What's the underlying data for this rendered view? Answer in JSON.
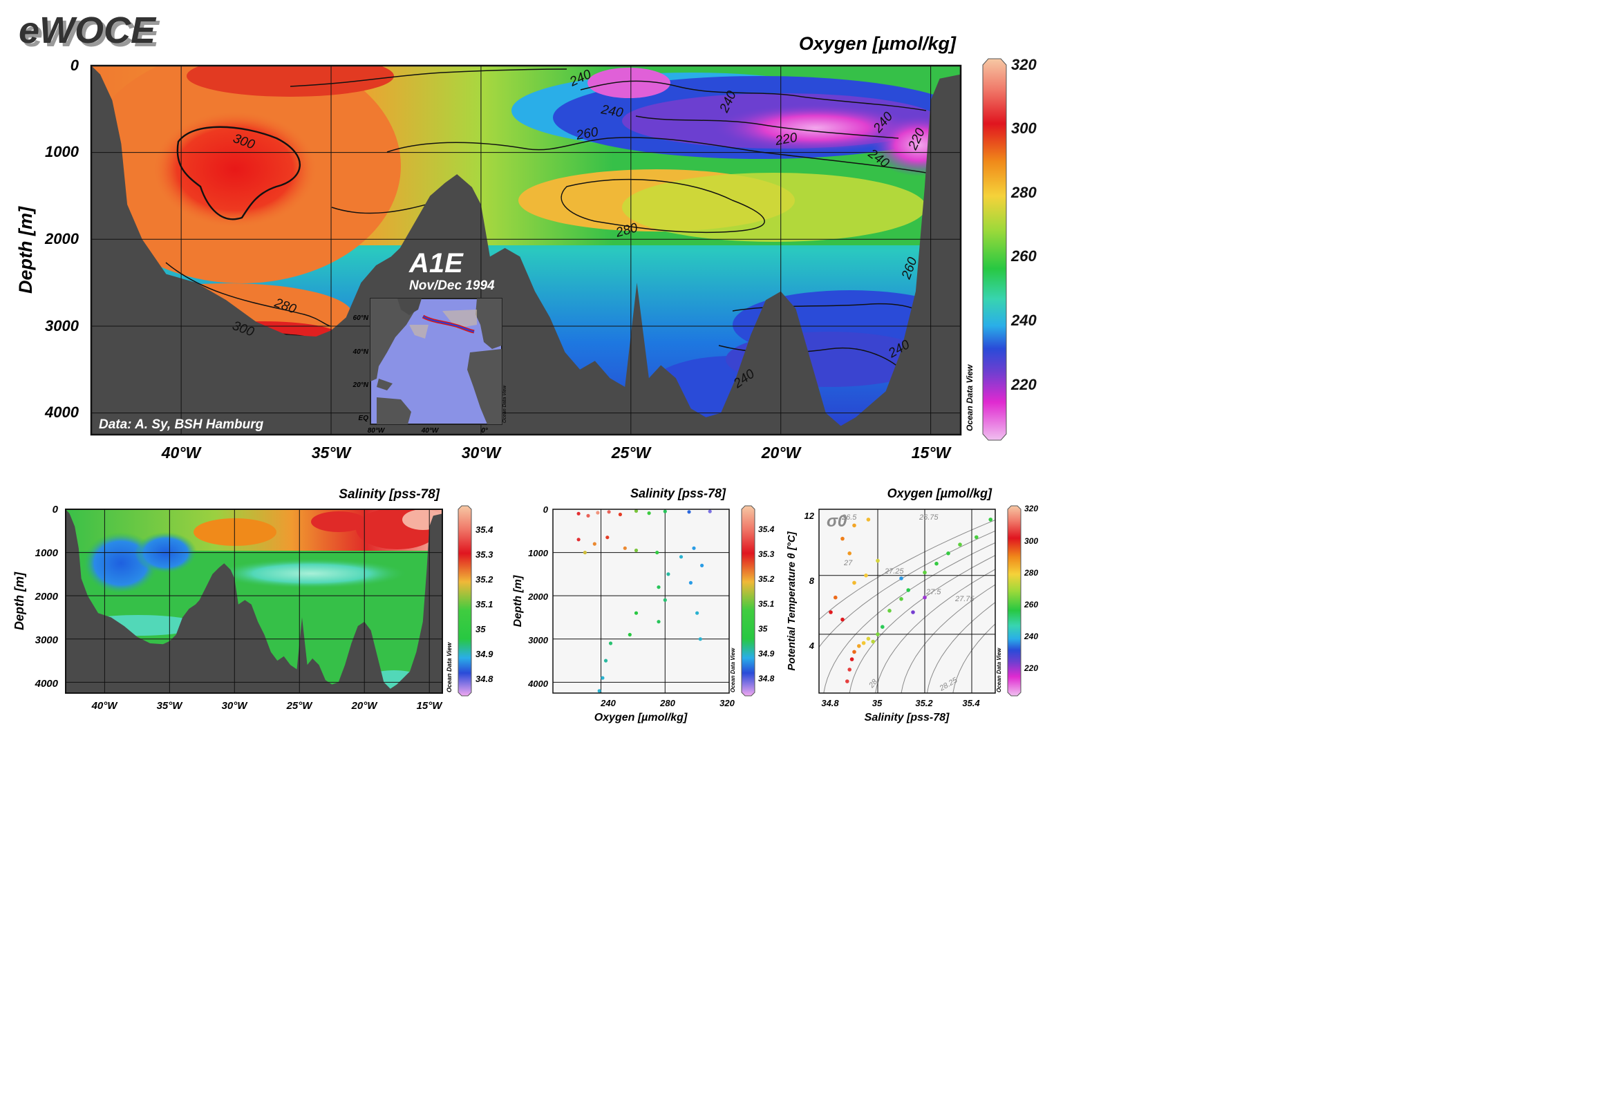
{
  "header": {
    "logo": "eWOCE"
  },
  "main_section": {
    "title": "Oxygen [µmol/kg]",
    "ylabel": "Depth [m]",
    "yticks": [
      "0",
      "1000",
      "2000",
      "3000",
      "4000"
    ],
    "xticks": [
      "40°W",
      "35°W",
      "30°W",
      "25°W",
      "20°W",
      "15°W"
    ],
    "credit": "Data: A. Sy, BSH Hamburg",
    "section_name": "A1E",
    "cruise_date": "Nov/Dec 1994",
    "inset_lat_ticks": [
      "60°N",
      "40°N",
      "20°N",
      "EQ"
    ],
    "inset_lon_ticks": [
      "80°W",
      "40°W",
      "0°"
    ],
    "inset_watermark": "Ocean Data View",
    "contour_labels": [
      "300",
      "300",
      "300",
      "280",
      "280",
      "280",
      "260",
      "260",
      "240",
      "240",
      "240",
      "240",
      "240",
      "240",
      "240",
      "220",
      "220"
    ]
  },
  "colorbars": {
    "oxygen_main": {
      "ticks": [
        "320",
        "300",
        "280",
        "260",
        "240",
        "220"
      ],
      "watermark": "Ocean Data View"
    },
    "salinity": {
      "ticks": [
        "35.4",
        "35.3",
        "35.2",
        "35.1",
        "35",
        "34.9",
        "34.8"
      ],
      "watermark": "Ocean Data View"
    },
    "oxygen_small": {
      "ticks": [
        "320",
        "300",
        "280",
        "260",
        "240",
        "220"
      ],
      "watermark": "Ocean Data View"
    }
  },
  "salinity_section": {
    "title": "Salinity [pss-78]",
    "ylabel": "Depth [m]",
    "yticks": [
      "0",
      "1000",
      "2000",
      "3000",
      "4000"
    ],
    "xticks": [
      "40°W",
      "35°W",
      "30°W",
      "25°W",
      "20°W",
      "15°W"
    ]
  },
  "scatter_depth": {
    "title": "Salinity [pss-78]",
    "ylabel": "Depth [m]",
    "xlabel": "Oxygen [µmol/kg]",
    "yticks": [
      "0",
      "1000",
      "2000",
      "3000",
      "4000"
    ],
    "xticks": [
      "240",
      "280",
      "320"
    ]
  },
  "ts_diagram": {
    "title": "Oxygen [µmol/kg]",
    "ylabel": "Potential Temperature θ [°C]",
    "xlabel": "Salinity [pss-78]",
    "yticks": [
      "12",
      "8",
      "4"
    ],
    "xticks": [
      "34.8",
      "35",
      "35.2",
      "35.4"
    ],
    "sigma_symbol": "σ0",
    "isopycnals": [
      "26.5",
      "26.75",
      "27",
      "27.25",
      "27.5",
      "27.75",
      "28",
      "28.25"
    ]
  },
  "chart_data": [
    {
      "type": "heatmap",
      "title": "Oxygen [µmol/kg]",
      "xlabel": "",
      "ylabel": "Depth [m]",
      "xlim": [
        -43,
        -14
      ],
      "ylim": [
        4250,
        0
      ],
      "colorbar_range": [
        205,
        320
      ],
      "bottom_bathymetry": [
        [
          -43,
          0
        ],
        [
          -42.7,
          100
        ],
        [
          -42.3,
          400
        ],
        [
          -42,
          900
        ],
        [
          -41.8,
          1600
        ],
        [
          -41.3,
          2000
        ],
        [
          -40.5,
          2400
        ],
        [
          -39.5,
          2500
        ],
        [
          -38.5,
          2700
        ],
        [
          -37.5,
          2950
        ],
        [
          -36.5,
          3100
        ],
        [
          -35.5,
          3120
        ],
        [
          -35,
          3050
        ],
        [
          -34.5,
          2900
        ],
        [
          -34,
          2500
        ],
        [
          -33.5,
          2300
        ],
        [
          -33,
          2200
        ],
        [
          -32.7,
          2100
        ],
        [
          -32.2,
          1800
        ],
        [
          -31.7,
          1500
        ],
        [
          -31.2,
          1350
        ],
        [
          -30.8,
          1250
        ],
        [
          -30.3,
          1400
        ],
        [
          -30,
          1600
        ],
        [
          -29.7,
          2200
        ],
        [
          -29.2,
          2100
        ],
        [
          -28.7,
          2200
        ],
        [
          -28.2,
          2600
        ],
        [
          -27.7,
          2900
        ],
        [
          -27.2,
          3300
        ],
        [
          -26.7,
          3500
        ],
        [
          -26.2,
          3400
        ],
        [
          -25.7,
          3600
        ],
        [
          -25.2,
          3700
        ],
        [
          -24.8,
          2500
        ],
        [
          -24.4,
          3600
        ],
        [
          -24,
          3450
        ],
        [
          -23.5,
          3600
        ],
        [
          -23,
          3950
        ],
        [
          -22.5,
          4050
        ],
        [
          -22,
          4000
        ],
        [
          -21.5,
          3600
        ],
        [
          -21,
          3100
        ],
        [
          -20.5,
          2700
        ],
        [
          -20,
          2600
        ],
        [
          -19.5,
          2800
        ],
        [
          -19,
          3400
        ],
        [
          -18.5,
          4000
        ],
        [
          -18,
          4150
        ],
        [
          -17.5,
          4050
        ],
        [
          -17,
          3900
        ],
        [
          -16.5,
          3750
        ],
        [
          -16,
          3300
        ],
        [
          -15.5,
          2600
        ],
        [
          -15.2,
          1400
        ],
        [
          -15,
          400
        ],
        [
          -14.7,
          150
        ],
        [
          -14,
          100
        ]
      ]
    },
    {
      "type": "heatmap",
      "title": "Salinity [pss-78]",
      "xlabel": "",
      "ylabel": "Depth [m]",
      "xlim": [
        -43,
        -14
      ],
      "ylim": [
        4250,
        0
      ],
      "colorbar_range": [
        34.75,
        35.45
      ]
    },
    {
      "type": "scatter",
      "title": "Salinity [pss-78]",
      "xlabel": "Oxygen [µmol/kg]",
      "ylabel": "Depth [m]",
      "xlim": [
        210,
        320
      ],
      "ylim": [
        4250,
        0
      ],
      "color_variable": "Salinity [pss-78]",
      "series": [
        {
          "points": [
            [
              226,
              100,
              35.3
            ],
            [
              232,
              150,
              35.35
            ],
            [
              238,
              80,
              35.4
            ],
            [
              245,
              60,
              35.35
            ],
            [
              252,
              120,
              35.25
            ],
            [
              262,
              40,
              35.1
            ],
            [
              270,
              90,
              35.05
            ],
            [
              280,
              50,
              34.95
            ],
            [
              295,
              60,
              34.85
            ],
            [
              308,
              50,
              34.8
            ],
            [
              226,
              700,
              35.3
            ],
            [
              236,
              800,
              35.2
            ],
            [
              244,
              650,
              35.25
            ],
            [
              230,
              1000,
              35.15
            ],
            [
              255,
              900,
              35.2
            ],
            [
              262,
              950,
              35.1
            ],
            [
              275,
              1000,
              35.0
            ],
            [
              290,
              1100,
              34.9
            ],
            [
              298,
              900,
              34.88
            ],
            [
              303,
              1300,
              34.88
            ],
            [
              282,
              1500,
              34.92
            ],
            [
              276,
              1800,
              34.95
            ],
            [
              296,
              1700,
              34.88
            ],
            [
              280,
              2100,
              34.94
            ],
            [
              300,
              2400,
              34.9
            ],
            [
              276,
              2600,
              34.95
            ],
            [
              302,
              3000,
              34.9
            ],
            [
              262,
              2400,
              34.96
            ],
            [
              258,
              2900,
              34.96
            ],
            [
              246,
              3100,
              34.94
            ],
            [
              243,
              3500,
              34.92
            ],
            [
              241,
              3900,
              34.9
            ],
            [
              239,
              4200,
              34.9
            ]
          ]
        }
      ]
    },
    {
      "type": "scatter",
      "title": "Oxygen [µmol/kg]",
      "xlabel": "Salinity [pss-78]",
      "ylabel": "Potential Temperature θ [°C]",
      "xlim": [
        34.75,
        35.5
      ],
      "ylim": [
        0,
        12.5
      ],
      "color_variable": "Oxygen [µmol/kg]",
      "series": [
        {
          "points": [
            [
              34.87,
              0.8,
              305
            ],
            [
              34.88,
              1.6,
              305
            ],
            [
              34.89,
              2.3,
              300
            ],
            [
              34.9,
              2.8,
              292
            ],
            [
              34.92,
              3.2,
              285
            ],
            [
              34.94,
              3.4,
              280
            ],
            [
              34.96,
              3.7,
              276
            ],
            [
              34.98,
              3.5,
              272
            ],
            [
              35.0,
              4.0,
              265
            ],
            [
              35.02,
              4.5,
              255
            ],
            [
              34.85,
              5.0,
              300
            ],
            [
              34.8,
              5.5,
              300
            ],
            [
              34.82,
              6.5,
              292
            ],
            [
              34.9,
              7.5,
              282
            ],
            [
              34.95,
              8.0,
              280
            ],
            [
              35.05,
              5.6,
              263
            ],
            [
              35.1,
              6.4,
              262
            ],
            [
              35.13,
              7.0,
              256
            ],
            [
              35.1,
              7.8,
              238
            ],
            [
              35.2,
              8.2,
              262
            ],
            [
              35.25,
              8.8,
              258
            ],
            [
              35.3,
              9.5,
              258
            ],
            [
              35.35,
              10.1,
              262
            ],
            [
              35.42,
              10.6,
              260
            ],
            [
              35.48,
              11.8,
              258
            ],
            [
              34.85,
              10.5,
              290
            ],
            [
              34.9,
              11.4,
              285
            ],
            [
              34.96,
              11.8,
              282
            ],
            [
              34.88,
              9.5,
              287
            ],
            [
              35.0,
              9.0,
              275
            ],
            [
              35.2,
              6.5,
              222
            ],
            [
              35.15,
              5.5,
              225
            ]
          ]
        }
      ]
    }
  ]
}
